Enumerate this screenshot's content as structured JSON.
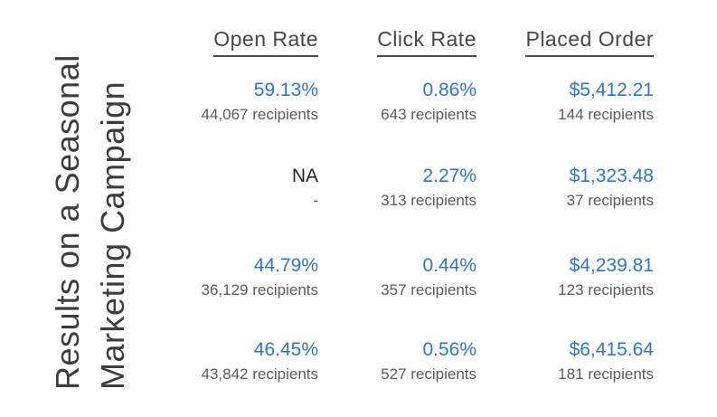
{
  "title": {
    "line1": "Results on a Seasonal",
    "line2": "Marketing Campaign"
  },
  "colors": {
    "accent_blue": "#2e76c8",
    "recipients_gray": "#5a5a5a",
    "heading_gray": "#464646",
    "na_dark": "#262626"
  },
  "chart_data": {
    "type": "table",
    "title": "Results on a Seasonal Marketing Campaign",
    "columns": [
      "Open Rate",
      "Click Rate",
      "Placed Order"
    ],
    "rows": [
      {
        "cells": [
          {
            "value": "59.13%",
            "recipients": "44,067 recipients"
          },
          {
            "value": "0.86%",
            "recipients": "643 recipients"
          },
          {
            "value": "$5,412.21",
            "recipients": "144 recipients"
          }
        ]
      },
      {
        "cells": [
          {
            "value": "NA",
            "recipients": "-"
          },
          {
            "value": "2.27%",
            "recipients": "313 recipients"
          },
          {
            "value": "$1,323.48",
            "recipients": "37 recipients"
          }
        ]
      },
      {
        "cells": [
          {
            "value": "44.79%",
            "recipients": "36,129 recipients"
          },
          {
            "value": "0.44%",
            "recipients": "357 recipients"
          },
          {
            "value": "$4,239.81",
            "recipients": "123 recipients"
          }
        ]
      },
      {
        "cells": [
          {
            "value": "46.45%",
            "recipients": "43,842 recipients"
          },
          {
            "value": "0.56%",
            "recipients": "527 recipients"
          },
          {
            "value": "$6,415.64",
            "recipients": "181 recipients"
          }
        ]
      }
    ]
  }
}
